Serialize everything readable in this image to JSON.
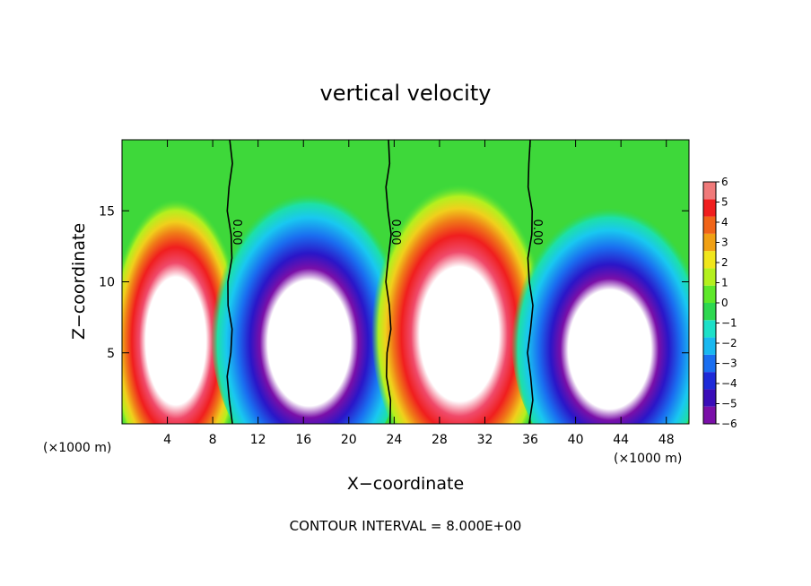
{
  "chart_data": {
    "type": "heatmap",
    "title": "vertical velocity",
    "xlabel": "X−coordinate",
    "ylabel": "Z−coordinate",
    "x_unit_left": "(×1000 m)",
    "x_unit_right": "(×1000 m)",
    "footer": "CONTOUR INTERVAL = 8.000E+00",
    "xlim": [
      0,
      50
    ],
    "ylim": [
      0,
      20
    ],
    "x_ticks": [
      4,
      8,
      12,
      16,
      20,
      24,
      28,
      32,
      36,
      40,
      44,
      48
    ],
    "y_ticks": [
      5,
      10,
      15
    ],
    "colorbar": {
      "levels": [
        6,
        5,
        4,
        3,
        2,
        1,
        0,
        -1,
        -2,
        -3,
        -4,
        -5,
        -6
      ],
      "labels": [
        "6",
        "5",
        "4",
        "3",
        "2",
        "1",
        "0",
        "−1",
        "−2",
        "−3",
        "−4",
        "−5",
        "−6"
      ],
      "range": [
        -6,
        6
      ],
      "colors": [
        "#7a0fa8",
        "#3a0db8",
        "#1e2ad8",
        "#1a6ef0",
        "#19b8f0",
        "#1de0c8",
        "#2ed850",
        "#5ee82a",
        "#b4f01e",
        "#f0e61c",
        "#f0a014",
        "#f06418",
        "#f01e1e",
        "#f07a7a"
      ]
    },
    "zero_contour_labels": [
      "0.00",
      "0.00",
      "0.00"
    ],
    "cells": [
      {
        "x_range": [
          0,
          9.5
        ],
        "sign": "updraft",
        "z_top": 15,
        "core_below": 11
      },
      {
        "x_range": [
          9.5,
          23.5
        ],
        "sign": "downdraft",
        "z_top": 16,
        "core_below": 10
      },
      {
        "x_range": [
          23.5,
          36
        ],
        "sign": "updraft",
        "z_top": 16,
        "core_below": 12
      },
      {
        "x_range": [
          36,
          50
        ],
        "sign": "downdraft",
        "z_top": 15,
        "core_below": 8
      }
    ]
  }
}
